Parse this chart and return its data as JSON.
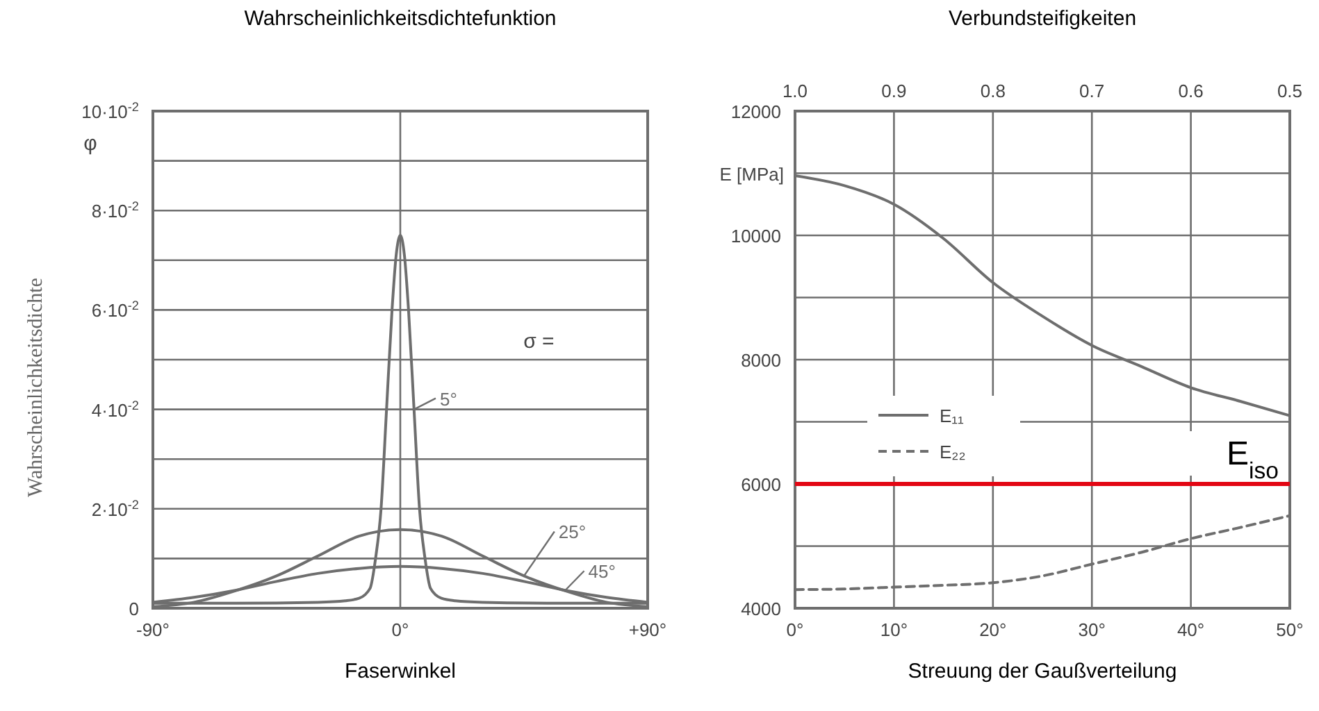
{
  "chart_data": [
    {
      "type": "line",
      "title": "Wahrscheinlichkeitsdichtefunktion",
      "xlabel": "Faserwinkel",
      "ylabel": "Wahrscheinlichkeitsdichte",
      "xlim": [
        -90,
        90
      ],
      "xticks": [
        {
          "value": -90,
          "label": "-90°"
        },
        {
          "value": 0,
          "label": "0°"
        },
        {
          "value": 90,
          "label": "+90°"
        }
      ],
      "ylim": [
        0,
        0.1
      ],
      "yticks": [
        {
          "value": 0,
          "label": "0"
        },
        {
          "value": 0.01,
          "label": null
        },
        {
          "value": 0.02,
          "label": "2·10$^{-2}$"
        },
        {
          "value": 0.03,
          "label": null
        },
        {
          "value": 0.04,
          "label": "4·10$^{-2}$"
        },
        {
          "value": 0.05,
          "label": null
        },
        {
          "value": 0.06,
          "label": "6·10$^{-2}$"
        },
        {
          "value": 0.07,
          "label": null
        },
        {
          "value": 0.08,
          "label": "8·10$^{-2}$"
        },
        {
          "value": 0.09,
          "label": null
        },
        {
          "value": 0.1,
          "label": "10·10$^{-2}$"
        }
      ],
      "grid": "y",
      "legend": "right",
      "marker": "none",
      "line_style": "solid",
      "ref_lines": [
        {
          "axis": "x",
          "value": 0,
          "color": "#6e6e6e"
        }
      ],
      "annotations": [
        "φ",
        "σ ="
      ],
      "series": [
        {
          "name": "5°",
          "color": "#6e6e6e",
          "x": [
            -90,
            -60,
            -30,
            -20,
            -15,
            -11,
            -9,
            -7,
            -5,
            -3,
            -1.5,
            0,
            1.5,
            3,
            5,
            7,
            9,
            11,
            15,
            20,
            30,
            60,
            90
          ],
          "values": [
            0.001,
            0.001,
            0.0012,
            0.0015,
            0.002,
            0.004,
            0.01,
            0.02,
            0.04,
            0.06,
            0.071,
            0.075,
            0.071,
            0.06,
            0.04,
            0.02,
            0.01,
            0.004,
            0.002,
            0.0015,
            0.0012,
            0.001,
            0.001
          ]
        },
        {
          "name": "25°",
          "color": "#6e6e6e",
          "x": [
            -90,
            -75,
            -60,
            -45,
            -30,
            -15,
            0,
            15,
            30,
            45,
            60,
            75,
            90
          ],
          "values": [
            0.0003,
            0.0012,
            0.0035,
            0.0065,
            0.0105,
            0.0145,
            0.0158,
            0.0145,
            0.0105,
            0.0065,
            0.0035,
            0.0012,
            0.0003
          ]
        },
        {
          "name": "45°",
          "color": "#6e6e6e",
          "x": [
            -90,
            -75,
            -60,
            -45,
            -30,
            -15,
            0,
            15,
            30,
            45,
            60,
            75,
            90
          ],
          "values": [
            0.0012,
            0.0022,
            0.0036,
            0.0054,
            0.007,
            0.008,
            0.0084,
            0.008,
            0.007,
            0.0054,
            0.0036,
            0.0022,
            0.0012
          ]
        }
      ]
    },
    {
      "type": "line",
      "title": "Verbundsteifigkeiten",
      "xlabel": "Streuung der Gaußverteilung",
      "ylabel": "E [MPa]",
      "xlim": [
        0,
        50
      ],
      "xticks": [
        {
          "value": 0,
          "label": "0°"
        },
        {
          "value": 10,
          "label": "10°"
        },
        {
          "value": 20,
          "label": "20°"
        },
        {
          "value": 30,
          "label": "30°"
        },
        {
          "value": 40,
          "label": "40°"
        },
        {
          "value": 50,
          "label": "50°"
        }
      ],
      "x2lim": [
        1,
        0.5
      ],
      "x2ticks": [
        {
          "value": 1,
          "label": "1.0"
        },
        0.9,
        0.8,
        0.7,
        0.6,
        0.5
      ],
      "ylim": [
        4000,
        12000
      ],
      "yticks": [
        4000,
        {
          "value": 5000,
          "label": null
        },
        6000,
        {
          "value": 7000,
          "label": null
        },
        8000,
        {
          "value": 9000,
          "label": null
        },
        10000,
        {
          "value": 11000,
          "label": null
        },
        12000
      ],
      "grid": true,
      "legend": "left",
      "marker": "none",
      "ref_lines": [
        {
          "axis": "y",
          "value": 6000,
          "label": "E$_{iso}$",
          "color": "#e30613"
        }
      ],
      "series": [
        {
          "name": "E₁₁",
          "color": "#6e6e6e",
          "line_style": "solid",
          "x": [
            0,
            5,
            10,
            15,
            20,
            25,
            30,
            35,
            40,
            45,
            50
          ],
          "values": [
            10960,
            10800,
            10500,
            9950,
            9240,
            8700,
            8230,
            7890,
            7550,
            7330,
            7100
          ]
        },
        {
          "name": "E₂₂",
          "color": "#6e6e6e",
          "line_style": "dashed",
          "x": [
            0,
            5,
            10,
            15,
            20,
            25,
            30,
            35,
            40,
            45,
            50
          ],
          "values": [
            4300,
            4310,
            4340,
            4370,
            4410,
            4520,
            4710,
            4900,
            5120,
            5300,
            5490
          ]
        }
      ]
    }
  ]
}
